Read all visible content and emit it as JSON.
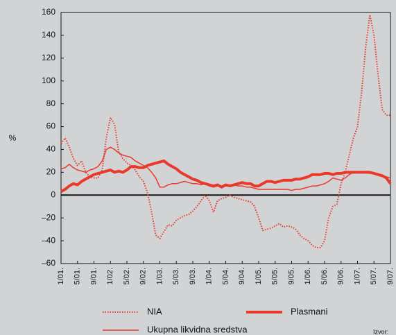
{
  "chart_data": {
    "type": "line",
    "ylabel": "%",
    "source": "Izvor:",
    "categories": [
      "1/01.",
      null,
      null,
      null,
      "5/01.",
      null,
      null,
      null,
      "9/01.",
      null,
      null,
      null,
      "1/02.",
      null,
      null,
      null,
      "5/02.",
      null,
      null,
      null,
      "9/02.",
      null,
      null,
      null,
      "1/03.",
      null,
      null,
      null,
      "5/03.",
      null,
      null,
      null,
      "9/03.",
      null,
      null,
      null,
      "1/04.",
      null,
      null,
      null,
      "5/04.",
      null,
      null,
      null,
      "9/04.",
      null,
      null,
      null,
      "1/05.",
      null,
      null,
      null,
      "5/05.",
      null,
      null,
      null,
      "9/05.",
      null,
      null,
      null,
      "1/06.",
      null,
      null,
      null,
      "5/06.",
      null,
      null,
      null,
      "9/06.",
      null,
      null,
      null,
      "1/07.",
      null,
      null,
      null,
      "5/07.",
      null,
      null,
      null,
      "9/07."
    ],
    "series": [
      {
        "name": "NIA",
        "color": "#e8392b",
        "style": "dotted",
        "values": [
          45,
          50,
          42,
          32,
          26,
          30,
          20,
          16,
          15,
          15,
          22,
          50,
          68,
          62,
          38,
          32,
          28,
          26,
          22,
          16,
          12,
          2,
          -15,
          -35,
          -38,
          -32,
          -26,
          -27,
          -22,
          -20,
          -18,
          -17,
          -14,
          -10,
          -5,
          0,
          -5,
          -15,
          -5,
          -3,
          -2,
          0,
          -2,
          -3,
          -4,
          -5,
          -6,
          -10,
          -20,
          -31,
          -30,
          -29,
          -27,
          -25,
          -28,
          -27,
          -28,
          -30,
          -35,
          -38,
          -40,
          -44,
          -46,
          -46,
          -40,
          -20,
          -10,
          -8,
          10,
          20,
          35,
          50,
          60,
          90,
          130,
          158,
          140,
          105,
          75,
          70,
          70
        ]
      },
      {
        "name": "Plasmani",
        "color": "#e8392b",
        "style": "thick",
        "values": [
          3,
          5,
          8,
          10,
          9,
          12,
          14,
          16,
          18,
          19,
          20,
          21,
          22,
          20,
          21,
          20,
          22,
          25,
          25,
          24,
          24,
          26,
          27,
          28,
          29,
          30,
          27,
          25,
          23,
          20,
          18,
          16,
          14,
          13,
          11,
          10,
          9,
          8,
          9,
          7,
          9,
          8,
          9,
          10,
          11,
          10,
          10,
          8,
          8,
          10,
          12,
          12,
          11,
          12,
          13,
          13,
          13,
          14,
          14,
          15,
          16,
          18,
          18,
          18,
          19,
          19,
          18,
          19,
          19,
          20,
          20,
          20,
          20,
          20,
          20,
          20,
          19,
          18,
          17,
          15,
          10
        ]
      },
      {
        "name": "Ukupna likvidna sredstva",
        "color": "#e8392b",
        "style": "thin",
        "values": [
          23,
          24,
          27,
          24,
          22,
          21,
          20,
          22,
          23,
          25,
          30,
          40,
          42,
          40,
          37,
          35,
          34,
          33,
          30,
          28,
          26,
          24,
          20,
          15,
          7,
          7,
          9,
          10,
          10,
          11,
          12,
          11,
          10,
          10,
          9,
          10,
          8,
          7,
          8,
          8,
          8,
          9,
          9,
          8,
          8,
          7,
          7,
          6,
          5,
          5,
          5,
          5,
          5,
          5,
          5,
          5,
          4,
          5,
          5,
          6,
          7,
          8,
          8,
          9,
          10,
          12,
          15,
          14,
          13,
          15,
          18,
          20,
          20,
          20,
          20,
          19,
          19,
          18,
          17,
          16,
          15
        ]
      }
    ],
    "ylim": [
      -60,
      160
    ],
    "yticks": [
      {
        "value": -60,
        "label": "–60"
      },
      {
        "value": -40,
        "label": "–40"
      },
      {
        "value": -20,
        "label": "–20"
      },
      0,
      20,
      40,
      60,
      80,
      100,
      120,
      140,
      160
    ],
    "grid": false
  }
}
